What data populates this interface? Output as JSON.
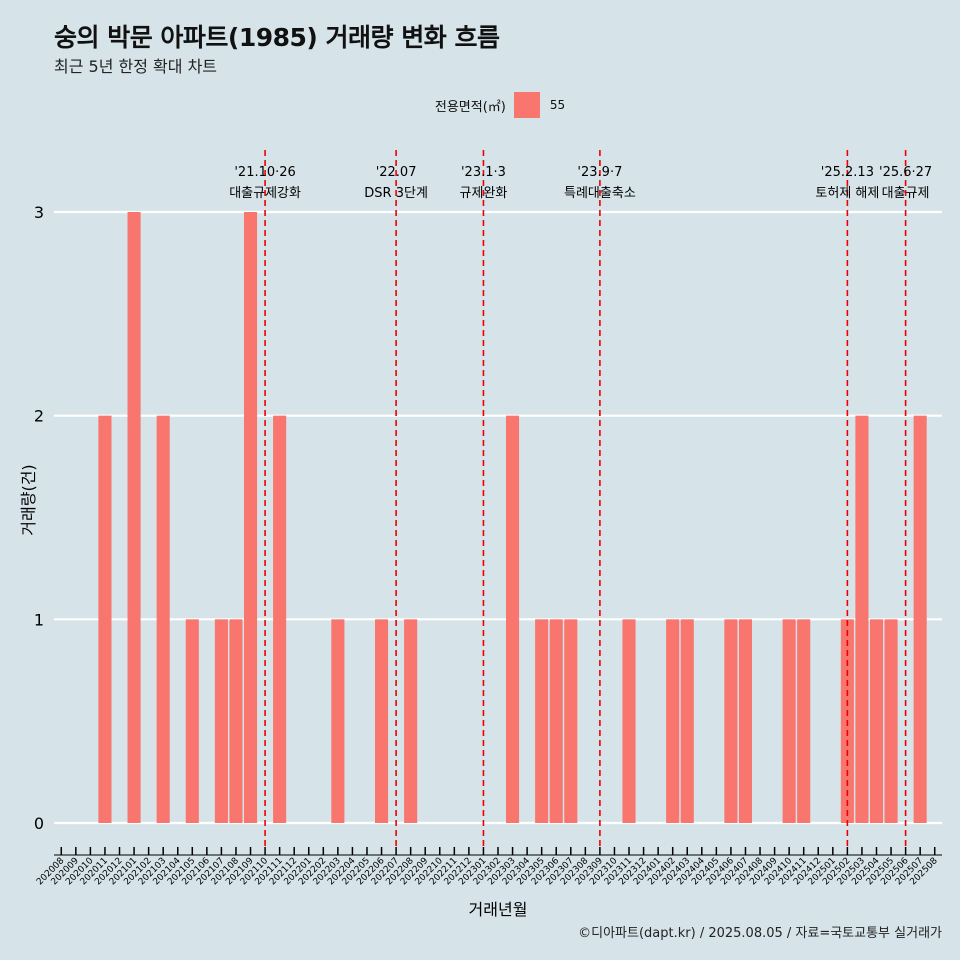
{
  "title": "숭의 박문 아파트(1985) 거래량 변화 흐름",
  "subtitle": "최근 5년 한정 확대 차트",
  "caption": "©디아파트(dapt.kr) / 2025.08.05 / 자료=국토교통부 실거래가",
  "legend": {
    "title": "전용면적(㎡)",
    "label": "55",
    "color": "#f8766d"
  },
  "chart_data": {
    "type": "bar",
    "xlabel": "거래년월",
    "ylabel": "거래량(건)",
    "ylim": [
      0,
      3
    ],
    "yticks": [
      0,
      1,
      2,
      3
    ],
    "grid": true,
    "legend_position": "top",
    "categories": [
      "202008",
      "202009",
      "202010",
      "202011",
      "202012",
      "202101",
      "202102",
      "202103",
      "202104",
      "202105",
      "202106",
      "202107",
      "202108",
      "202109",
      "202110",
      "202111",
      "202112",
      "202201",
      "202202",
      "202203",
      "202204",
      "202205",
      "202206",
      "202207",
      "202208",
      "202209",
      "202210",
      "202211",
      "202212",
      "202301",
      "202302",
      "202303",
      "202304",
      "202305",
      "202306",
      "202307",
      "202308",
      "202309",
      "202310",
      "202311",
      "202312",
      "202401",
      "202402",
      "202403",
      "202404",
      "202405",
      "202406",
      "202407",
      "202408",
      "202409",
      "202410",
      "202411",
      "202412",
      "202501",
      "202502",
      "202503",
      "202504",
      "202505",
      "202506",
      "202507",
      "202508"
    ],
    "series": [
      {
        "name": "55",
        "color": "#f8766d",
        "values": [
          0,
          0,
          0,
          2,
          0,
          3,
          0,
          2,
          0,
          1,
          0,
          1,
          1,
          3,
          0,
          2,
          0,
          0,
          0,
          1,
          0,
          0,
          1,
          0,
          1,
          0,
          0,
          0,
          0,
          0,
          0,
          2,
          0,
          1,
          1,
          1,
          0,
          0,
          0,
          1,
          0,
          0,
          1,
          1,
          0,
          0,
          1,
          1,
          0,
          0,
          1,
          1,
          0,
          0,
          1,
          2,
          1,
          1,
          0,
          2,
          0
        ]
      }
    ],
    "annotations": [
      {
        "date": "'21.10·26",
        "label": "대출규제강화",
        "x": "202110"
      },
      {
        "date": "'22.07",
        "label": "DSR 3단계",
        "x": "202207"
      },
      {
        "date": "'23.1·3",
        "label": "규제완화",
        "x": "202301"
      },
      {
        "date": "'23.9·7",
        "label": "특례대출축소",
        "x": "202309"
      },
      {
        "date": "'25.2.13",
        "label": "토허제 해제",
        "x": "202502"
      },
      {
        "date": "'25.6·27",
        "label": "대출규제",
        "x": "202506"
      }
    ]
  }
}
